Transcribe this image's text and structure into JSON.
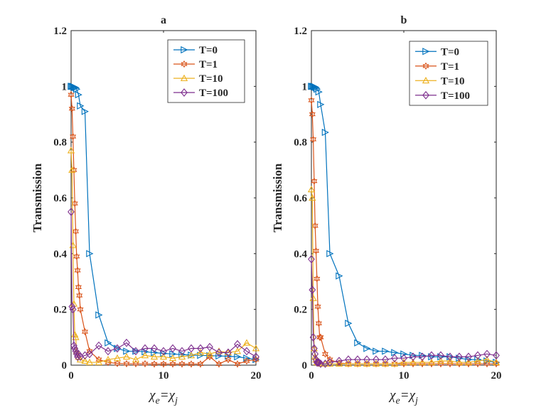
{
  "chart_data": [
    {
      "type": "line",
      "title": "a",
      "xlabel": "χe=χj",
      "ylabel": "Transmission",
      "xlim": [
        0,
        20
      ],
      "ylim": [
        0,
        1.2
      ],
      "xticks": [
        0,
        10,
        20
      ],
      "yticks": [
        0,
        0.2,
        0.4,
        0.6,
        0.8,
        1,
        1.2
      ],
      "xtick_labels": [
        "0",
        "10",
        "20"
      ],
      "ytick_labels": [
        "0",
        "0.2",
        "0.4",
        "0.6",
        "0.8",
        "1",
        "1.2"
      ],
      "legend_position": "top-right",
      "grid": false,
      "series": [
        {
          "name": "T=0",
          "color": "#0072BD",
          "marker": "triangle-right",
          "x": [
            0,
            0.1,
            0.2,
            0.3,
            0.4,
            0.5,
            0.6,
            0.8,
            1,
            1.5,
            2,
            3,
            4,
            5,
            6,
            7,
            8,
            9,
            10,
            11,
            12,
            13,
            14,
            15,
            16,
            17,
            18,
            19,
            20
          ],
          "y": [
            1.0,
            1.0,
            1.0,
            0.998,
            0.997,
            0.995,
            0.99,
            0.97,
            0.93,
            0.91,
            0.4,
            0.18,
            0.08,
            0.06,
            0.05,
            0.05,
            0.048,
            0.045,
            0.042,
            0.04,
            0.038,
            0.036,
            0.035,
            0.034,
            0.033,
            0.032,
            0.03,
            0.025,
            0.02
          ]
        },
        {
          "name": "T=1",
          "color": "#D95319",
          "marker": "hexagram",
          "x": [
            0,
            0.1,
            0.2,
            0.3,
            0.4,
            0.5,
            0.6,
            0.7,
            0.8,
            0.9,
            1,
            1.5,
            2,
            3,
            4,
            5,
            6,
            7,
            8,
            9,
            10,
            11,
            12,
            13,
            14,
            15,
            16,
            17,
            18,
            19,
            20
          ],
          "y": [
            0.97,
            0.92,
            0.82,
            0.7,
            0.58,
            0.48,
            0.39,
            0.34,
            0.28,
            0.25,
            0.2,
            0.12,
            0.05,
            0.02,
            0.01,
            0.006,
            0.005,
            0.005,
            0.005,
            0.004,
            0.004,
            0.004,
            0.004,
            0.004,
            0.004,
            0.03,
            0.004,
            0.02,
            0.004,
            0.015,
            0.02
          ]
        },
        {
          "name": "T=10",
          "color": "#EDB120",
          "marker": "triangle-up",
          "x": [
            0,
            0.1,
            0.2,
            0.3,
            0.4,
            0.5,
            0.6,
            0.8,
            1,
            1.5,
            2,
            3,
            4,
            5,
            6,
            7,
            8,
            9,
            10,
            11,
            12,
            13,
            14,
            15,
            16,
            17,
            18,
            19,
            20
          ],
          "y": [
            0.77,
            0.7,
            0.43,
            0.22,
            0.11,
            0.1,
            0.05,
            0.03,
            0.02,
            0.015,
            0.01,
            0.01,
            0.02,
            0.025,
            0.03,
            0.02,
            0.035,
            0.03,
            0.03,
            0.025,
            0.03,
            0.035,
            0.045,
            0.04,
            0.05,
            0.045,
            0.05,
            0.08,
            0.06
          ]
        },
        {
          "name": "T=100",
          "color": "#7E2F8E",
          "marker": "diamond",
          "x": [
            0,
            0.1,
            0.2,
            0.3,
            0.4,
            0.5,
            0.6,
            0.7,
            0.8,
            1,
            1.5,
            2,
            3,
            4,
            5,
            6,
            7,
            8,
            9,
            10,
            11,
            12,
            13,
            14,
            15,
            16,
            17,
            18,
            19,
            20
          ],
          "y": [
            0.55,
            0.21,
            0.2,
            0.07,
            0.06,
            0.05,
            0.04,
            0.03,
            0.04,
            0.03,
            0.035,
            0.04,
            0.07,
            0.05,
            0.06,
            0.08,
            0.05,
            0.06,
            0.06,
            0.05,
            0.06,
            0.05,
            0.06,
            0.06,
            0.065,
            0.045,
            0.045,
            0.075,
            0.05,
            0.03
          ]
        }
      ]
    },
    {
      "type": "line",
      "title": "b",
      "xlabel": "χe=χj",
      "ylabel": "Transmission",
      "xlim": [
        0,
        20
      ],
      "ylim": [
        0,
        1.2
      ],
      "xticks": [
        0,
        10,
        20
      ],
      "yticks": [
        0,
        0.2,
        0.4,
        0.6,
        0.8,
        1,
        1.2
      ],
      "xtick_labels": [
        "0",
        "10",
        "20"
      ],
      "ytick_labels": [
        "0",
        "0.2",
        "0.4",
        "0.6",
        "0.8",
        "1",
        "1.2"
      ],
      "legend_position": "top-right",
      "grid": false,
      "series": [
        {
          "name": "T=0",
          "color": "#0072BD",
          "marker": "triangle-right",
          "x": [
            0,
            0.1,
            0.2,
            0.3,
            0.4,
            0.5,
            0.6,
            0.8,
            1,
            1.5,
            2,
            3,
            4,
            5,
            6,
            7,
            8,
            9,
            10,
            11,
            12,
            13,
            14,
            15,
            16,
            17,
            18,
            19,
            20
          ],
          "y": [
            1.0,
            1.0,
            1.0,
            0.999,
            0.998,
            0.995,
            0.99,
            0.98,
            0.935,
            0.835,
            0.4,
            0.32,
            0.15,
            0.08,
            0.06,
            0.05,
            0.05,
            0.045,
            0.04,
            0.035,
            0.035,
            0.03,
            0.03,
            0.03,
            0.025,
            0.02,
            0.02,
            0.015,
            0.01
          ]
        },
        {
          "name": "T=1",
          "color": "#D95319",
          "marker": "hexagram",
          "x": [
            0,
            0.1,
            0.2,
            0.3,
            0.4,
            0.5,
            0.6,
            0.7,
            0.8,
            0.9,
            1,
            1.5,
            2,
            3,
            4,
            5,
            6,
            7,
            8,
            9,
            10,
            11,
            12,
            13,
            14,
            15,
            16,
            17,
            18,
            19,
            20
          ],
          "y": [
            0.95,
            0.9,
            0.81,
            0.66,
            0.5,
            0.41,
            0.31,
            0.21,
            0.15,
            0.1,
            0.1,
            0.04,
            0.02,
            0.008,
            0.005,
            0.005,
            0.005,
            0.005,
            0.005,
            0.005,
            0.005,
            0.005,
            0.005,
            0.005,
            0.005,
            0.005,
            0.005,
            0.005,
            0.005,
            0.005,
            0.005
          ]
        },
        {
          "name": "T=10",
          "color": "#EDB120",
          "marker": "triangle-up",
          "x": [
            0,
            0.1,
            0.2,
            0.3,
            0.4,
            0.5,
            0.6,
            0.8,
            1,
            1.5,
            2,
            3,
            4,
            5,
            6,
            7,
            8,
            9,
            10,
            11,
            12,
            13,
            14,
            15,
            16,
            17,
            18,
            19,
            20
          ],
          "y": [
            0.63,
            0.6,
            0.24,
            0.06,
            0.03,
            0.02,
            0.01,
            0.008,
            0.005,
            0.005,
            0.005,
            0.005,
            0.005,
            0.005,
            0.005,
            0.005,
            0.005,
            0.005,
            0.01,
            0.01,
            0.01,
            0.01,
            0.015,
            0.015,
            0.01,
            0.01,
            0.015,
            0.02,
            0.01
          ]
        },
        {
          "name": "T=100",
          "color": "#7E2F8E",
          "marker": "diamond",
          "x": [
            0,
            0.1,
            0.2,
            0.3,
            0.4,
            0.5,
            0.6,
            0.7,
            0.8,
            1,
            1.5,
            2,
            3,
            4,
            5,
            6,
            7,
            8,
            9,
            10,
            11,
            12,
            13,
            14,
            15,
            16,
            17,
            18,
            19,
            20
          ],
          "y": [
            0.38,
            0.27,
            0.1,
            0.06,
            0.04,
            0.02,
            0.01,
            0.01,
            0.01,
            0.005,
            0.005,
            0.01,
            0.015,
            0.02,
            0.02,
            0.02,
            0.02,
            0.02,
            0.025,
            0.025,
            0.03,
            0.03,
            0.035,
            0.035,
            0.03,
            0.03,
            0.03,
            0.035,
            0.04,
            0.035
          ]
        }
      ]
    }
  ]
}
